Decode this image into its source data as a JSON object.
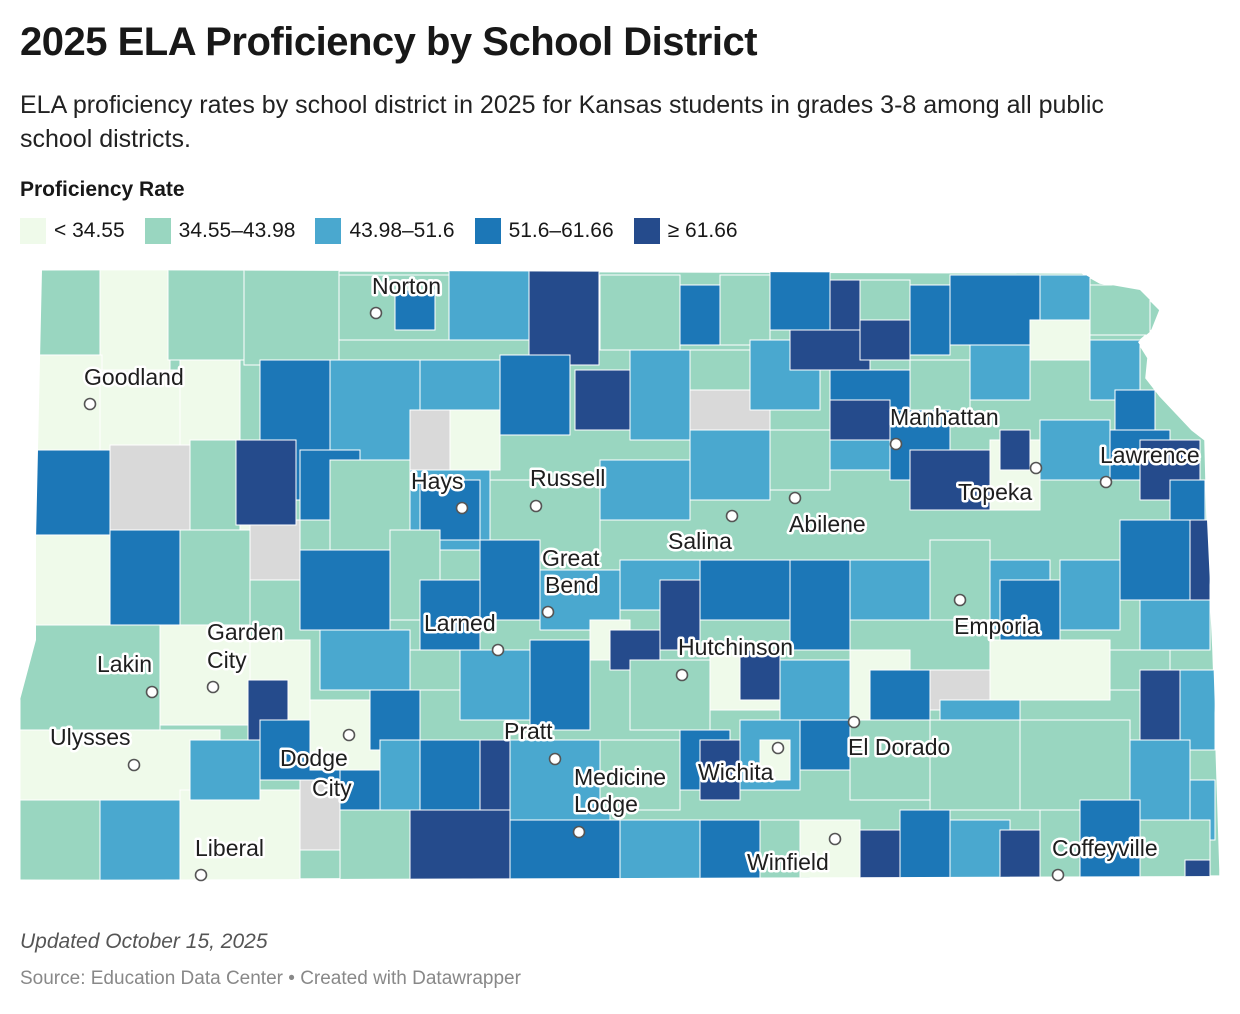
{
  "title": "2025 ELA Proficiency by School District",
  "subtitle": "ELA proficiency rates by school district in 2025 for Kansas students in grades 3-8 among all public school districts.",
  "legend": {
    "title": "Proficiency Rate",
    "bins": [
      {
        "label": "< 34.55",
        "color": "#effaea"
      },
      {
        "label": "34.55–43.98",
        "color": "#99d6c0"
      },
      {
        "label": "43.98–51.6",
        "color": "#4aa8cf"
      },
      {
        "label": "51.6–61.66",
        "color": "#1c77b7"
      },
      {
        "label": "≥ 61.66",
        "color": "#254b8c"
      }
    ],
    "no_data_color": "#d9d9d9"
  },
  "cities": [
    {
      "name": "Norton"
    },
    {
      "name": "Goodland"
    },
    {
      "name": "Manhattan"
    },
    {
      "name": "Lawrence"
    },
    {
      "name": "Hays"
    },
    {
      "name": "Russell"
    },
    {
      "name": "Topeka"
    },
    {
      "name": "Abilene"
    },
    {
      "name": "Salina"
    },
    {
      "name": "Great"
    },
    {
      "name": "Bend"
    },
    {
      "name": "Emporia"
    },
    {
      "name": "Larned"
    },
    {
      "name": "Hutchinson"
    },
    {
      "name": "Garden"
    },
    {
      "name": "City"
    },
    {
      "name": "Lakin"
    },
    {
      "name": "Ulysses"
    },
    {
      "name": "Pratt"
    },
    {
      "name": "El Dorado"
    },
    {
      "name": "Dodge"
    },
    {
      "name": "City"
    },
    {
      "name": "Medicine"
    },
    {
      "name": "Lodge"
    },
    {
      "name": "Wichita"
    },
    {
      "name": "Liberal"
    },
    {
      "name": "Winfield"
    },
    {
      "name": "Coffeyville"
    }
  ],
  "footer": {
    "updated": "Updated October 15, 2025",
    "source": "Source: Education Data Center • Created with Datawrapper"
  }
}
